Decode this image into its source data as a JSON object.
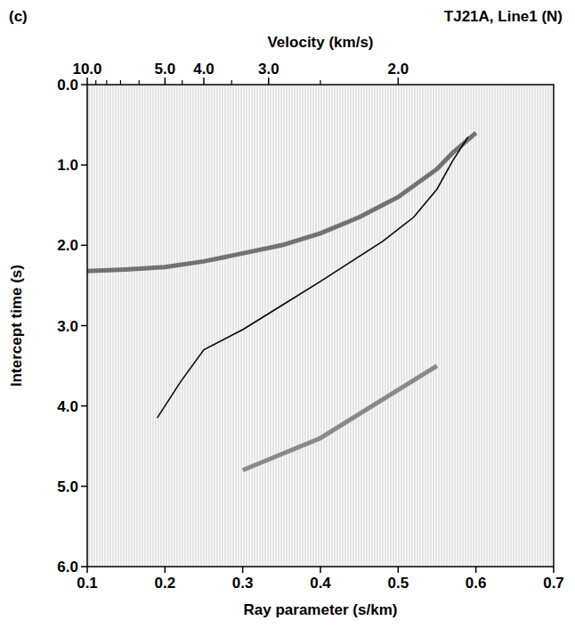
{
  "chart_data": {
    "type": "line",
    "panel": "(c)",
    "title": "TJ21A, Line1 (N)",
    "x_label": "Ray parameter (s/km)",
    "y_label": "Intercept time (s)",
    "x2_label": "Velocity (km/s)",
    "xlim": [
      0.1,
      0.7
    ],
    "xticks": [
      0.1,
      0.2,
      0.3,
      0.4,
      0.5,
      0.6,
      0.7
    ],
    "ylim": [
      6,
      0
    ],
    "yticks": [
      {
        "value": 0,
        "label": "0.0"
      },
      {
        "value": 1,
        "label": "1.0"
      },
      {
        "value": 2,
        "label": "2.0"
      },
      {
        "value": 3,
        "label": "3.0"
      },
      {
        "value": 4,
        "label": "4.0"
      },
      {
        "value": 5,
        "label": "5.0"
      },
      {
        "value": 6,
        "label": "6.0"
      }
    ],
    "x2lim": [
      10,
      1.4286
    ],
    "x2ticks": [
      {
        "value": 10,
        "label": "10.0"
      },
      {
        "value": 5,
        "label": "5.0"
      },
      {
        "value": 4,
        "label": "4.0"
      },
      {
        "value": 3,
        "label": "3.0"
      },
      {
        "value": 2,
        "label": "2.0"
      }
    ],
    "x2minor_ticks": [
      9,
      8,
      7,
      6,
      4.5,
      3.5,
      2.5
    ],
    "grid": false,
    "series": [
      {
        "color": "#4a4a4a",
        "line_style": "solid",
        "x": [
          0.6,
          0.57,
          0.55,
          0.5,
          0.45,
          0.4,
          0.35,
          0.3,
          0.25,
          0.2,
          0.15,
          0.1
        ],
        "values": [
          0.6,
          0.85,
          1.05,
          1.4,
          1.65,
          1.85,
          2.0,
          2.1,
          2.2,
          2.27,
          2.3,
          2.32
        ]
      },
      {
        "color": "#6a6a6a",
        "line_style": "solid",
        "x": [
          0.55,
          0.5,
          0.45,
          0.4,
          0.35,
          0.3
        ],
        "values": [
          3.5,
          3.8,
          4.1,
          4.4,
          4.6,
          4.8
        ]
      },
      {
        "color": "#000000",
        "line_style": "solid",
        "x": [
          0.59,
          0.57,
          0.55,
          0.52,
          0.48,
          0.44,
          0.4,
          0.35,
          0.3,
          0.25,
          0.22,
          0.19
        ],
        "values": [
          0.65,
          0.95,
          1.3,
          1.65,
          1.95,
          2.2,
          2.45,
          2.75,
          3.05,
          3.3,
          3.7,
          4.15
        ]
      }
    ]
  }
}
